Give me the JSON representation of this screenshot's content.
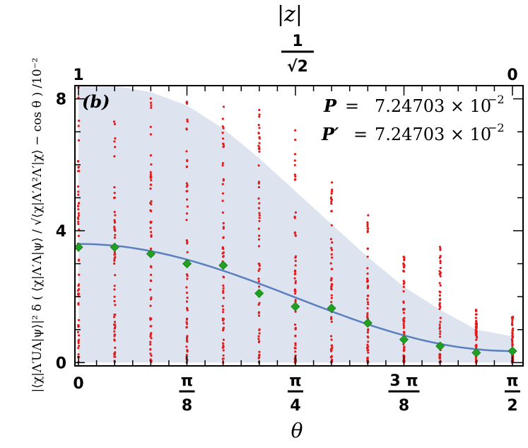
{
  "chart_data": {
    "type": "scatter",
    "panel_label": "(b)",
    "xlabel": "θ",
    "x2label": "|z|",
    "ylabel": "|⟨χ|Λ′UΛ|ψ⟩|² δ ( ⟨χ|Λ′Λ|ψ⟩ / √⟨χ|Λ′Λ²Λ′|χ⟩ − cos θ ) /10⁻²",
    "annotations": [
      {
        "lhs": "P",
        "rhs": "7.24703 × 10",
        "exp": "−2"
      },
      {
        "lhs": "P′",
        "rhs": "7.24703 × 10",
        "exp": "−2"
      }
    ],
    "xlim": [
      0,
      1.5708
    ],
    "ylim": [
      -0.1,
      8.4
    ],
    "x_ticks": [
      {
        "value": 0,
        "num": "0",
        "den": ""
      },
      {
        "value": 0.3927,
        "num": "π",
        "den": "8"
      },
      {
        "value": 0.7854,
        "num": "π",
        "den": "4"
      },
      {
        "value": 1.1781,
        "num": "3 π",
        "den": "8"
      },
      {
        "value": 1.5708,
        "num": "π",
        "den": "2"
      }
    ],
    "y_ticks": [
      0,
      4,
      8
    ],
    "x2_ticks": [
      {
        "value": 0,
        "num": "1",
        "den": ""
      },
      {
        "value": 0.7854,
        "num": "1",
        "den": "√2"
      },
      {
        "value": 1.5708,
        "num": "0",
        "den": ""
      }
    ],
    "band": {
      "x": [
        0,
        0.131,
        0.262,
        0.393,
        0.524,
        0.654,
        0.785,
        0.916,
        1.047,
        1.178,
        1.309,
        1.44,
        1.571
      ],
      "upper": [
        8.4,
        8.4,
        8.2,
        7.8,
        7.1,
        6.2,
        5.2,
        4.2,
        3.2,
        2.3,
        1.6,
        1.0,
        0.8
      ],
      "lower": [
        0,
        0,
        0,
        0,
        0,
        0,
        0,
        0,
        0,
        0,
        0,
        0,
        0
      ]
    },
    "curve_function": "3.25 cos^2(theta) + 0.35",
    "series": [
      {
        "name": "",
        "marker": "diamond",
        "color": "#22a022",
        "x": [
          0,
          0.131,
          0.262,
          0.393,
          0.524,
          0.654,
          0.785,
          0.916,
          1.047,
          1.178,
          1.309,
          1.44,
          1.571
        ],
        "y": [
          3.5,
          3.5,
          3.3,
          3.0,
          2.95,
          2.1,
          1.7,
          1.65,
          1.2,
          0.7,
          0.5,
          0.3,
          0.35
        ]
      }
    ],
    "scatter_columns": [
      {
        "x": 0,
        "ymax": 8.4
      },
      {
        "x": 0.131,
        "ymax": 7.6
      },
      {
        "x": 0.262,
        "ymax": 8.1
      },
      {
        "x": 0.393,
        "ymax": 8.4
      },
      {
        "x": 0.524,
        "ymax": 7.9
      },
      {
        "x": 0.654,
        "ymax": 7.9
      },
      {
        "x": 0.785,
        "ymax": 7.3
      },
      {
        "x": 0.916,
        "ymax": 5.5
      },
      {
        "x": 1.047,
        "ymax": 4.7
      },
      {
        "x": 1.178,
        "ymax": 3.4
      },
      {
        "x": 1.309,
        "ymax": 3.6
      },
      {
        "x": 1.44,
        "ymax": 1.6
      },
      {
        "x": 1.571,
        "ymax": 1.4
      }
    ],
    "colors": {
      "band": "#dde3ef",
      "curve": "#5a7fbf",
      "points": "#e01c1c",
      "markers": "#22a022"
    },
    "grid": false
  }
}
